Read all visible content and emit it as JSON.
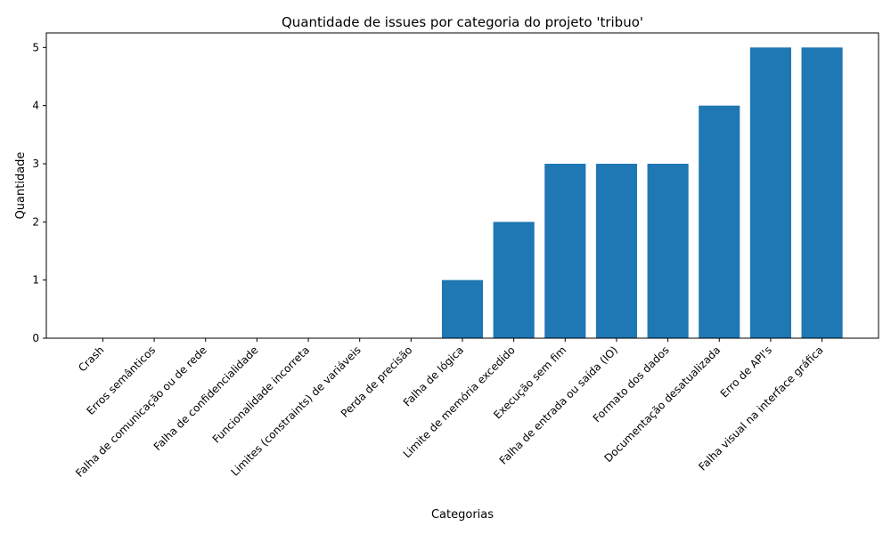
{
  "chart_data": {
    "type": "bar",
    "title": "Quantidade de issues por categoria do projeto 'tribuo'",
    "xlabel": "Categorias",
    "ylabel": "Quantidade",
    "ylim": [
      0,
      5.25
    ],
    "yticks": [
      0,
      1,
      2,
      3,
      4,
      5
    ],
    "grid": false,
    "bar_color": "#1f77b4",
    "categories": [
      "Crash",
      "Erros semânticos",
      "Falha de comunicação ou de rede",
      "Falha de confidencialidade",
      "Funcionalidade incorreta",
      "Limites (constraints) de variáveis",
      "Perda de precisão",
      "Falha de lógica",
      "Limite de memória excedido",
      "Execução sem fim",
      "Falha de entrada ou saída (IO)",
      "Formato dos dados",
      "Documentação desatualizada",
      "Erro de API's",
      "Falha visual na interface gráfica"
    ],
    "values": [
      0,
      0,
      0,
      0,
      0,
      0,
      0,
      1,
      2,
      3,
      3,
      3,
      4,
      5,
      5
    ]
  }
}
